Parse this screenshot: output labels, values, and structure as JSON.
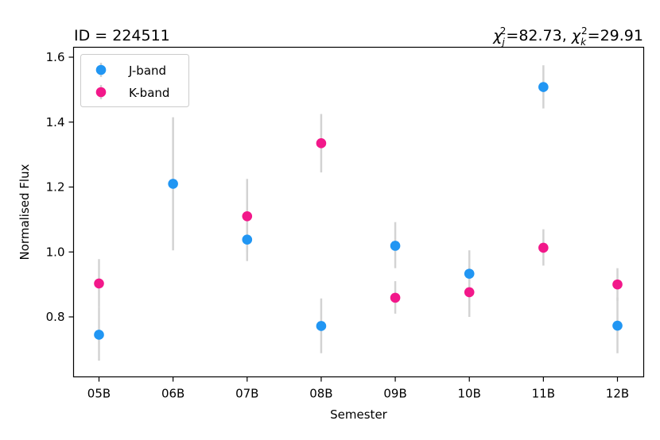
{
  "chart_data": {
    "type": "scatter",
    "title_left": "ID = 224511",
    "title_right": {
      "chi_j_symbol": "χ",
      "chi_j_sub": "j",
      "chi_j_sup": "2",
      "chi_j_value": "=82.73, ",
      "chi_k_symbol": "χ",
      "chi_k_sub": "k",
      "chi_k_sup": "2",
      "chi_k_value": "=29.91"
    },
    "xlabel": "Semester",
    "ylabel": "Normalised Flux",
    "categories": [
      "05B",
      "06B",
      "07B",
      "08B",
      "09B",
      "10B",
      "11B",
      "12B"
    ],
    "y_ticks": [
      "0.8",
      "1.0",
      "1.2",
      "1.4",
      "1.6"
    ],
    "ylim": [
      0.62,
      1.62
    ],
    "legend_position": "upper-left",
    "series": [
      {
        "name": "J-band",
        "color": "#2196f3",
        "points": [
          {
            "x": "05B",
            "y": 0.745,
            "err_low": 0.665,
            "err_high": 0.83
          },
          {
            "x": "06B",
            "y": 1.21,
            "err_low": 1.005,
            "err_high": 1.415
          },
          {
            "x": "07B",
            "y": 1.038,
            "err_low": 0.972,
            "err_high": 1.105
          },
          {
            "x": "08B",
            "y": 0.772,
            "err_low": 0.688,
            "err_high": 0.857
          },
          {
            "x": "09B",
            "y": 1.019,
            "err_low": 0.95,
            "err_high": 1.092
          },
          {
            "x": "10B",
            "y": 0.933,
            "err_low": 0.862,
            "err_high": 1.005
          },
          {
            "x": "11B",
            "y": 1.508,
            "err_low": 1.442,
            "err_high": 1.575
          },
          {
            "x": "12B",
            "y": 0.773,
            "err_low": 0.688,
            "err_high": 0.86
          }
        ]
      },
      {
        "name": "K-band",
        "color": "#f2188a",
        "points": [
          {
            "x": "05B",
            "y": 0.903,
            "err_low": 0.83,
            "err_high": 0.978
          },
          {
            "x": "07B",
            "y": 1.11,
            "err_low": 1.0,
            "err_high": 1.225
          },
          {
            "x": "08B",
            "y": 1.335,
            "err_low": 1.245,
            "err_high": 1.425
          },
          {
            "x": "09B",
            "y": 0.859,
            "err_low": 0.81,
            "err_high": 0.91
          },
          {
            "x": "10B",
            "y": 0.876,
            "err_low": 0.8,
            "err_high": 0.955
          },
          {
            "x": "11B",
            "y": 1.013,
            "err_low": 0.958,
            "err_high": 1.07
          },
          {
            "x": "12B",
            "y": 0.9,
            "err_low": 0.85,
            "err_high": 0.95
          }
        ]
      }
    ],
    "errorbar_color": "#d3d3d3",
    "grid": false
  }
}
